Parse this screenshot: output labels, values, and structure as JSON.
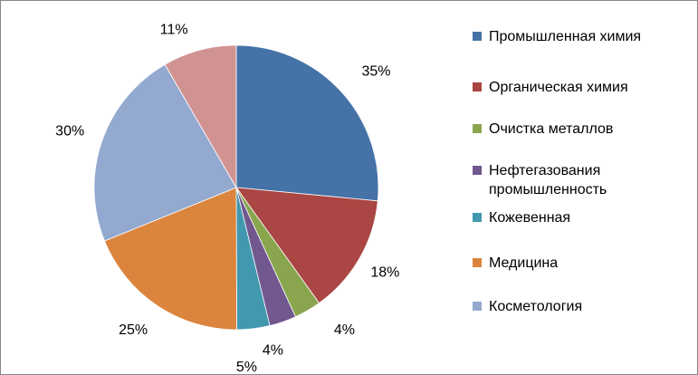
{
  "chart_data": {
    "type": "pie",
    "title": "",
    "categories": [
      "Промышленная химия",
      "Органическая химия",
      "Очистка металлов",
      "Нефтегазования промышленность",
      "Кожевенная",
      "Медицина",
      "Косметология",
      ""
    ],
    "values": [
      26.9,
      13.8,
      3.1,
      3.1,
      3.8,
      19.2,
      23.1,
      8.5
    ],
    "labels": [
      "35%",
      "18%",
      "4%",
      "4%",
      "5%",
      "25%",
      "30%",
      "11%"
    ],
    "colors": [
      "#4572A7",
      "#AA4643",
      "#89A54E",
      "#71588F",
      "#4198AF",
      "#DB843D",
      "#93A9CF",
      "#D19392"
    ],
    "legend_position": "right",
    "start_angle_deg": 0,
    "direction": "clockwise"
  }
}
